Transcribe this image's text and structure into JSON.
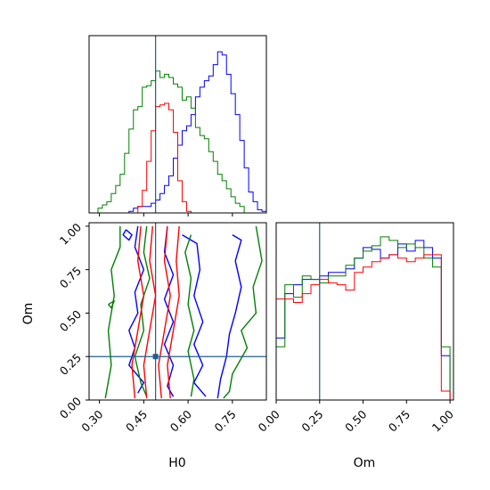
{
  "colors": {
    "truth": "#1f5f8b",
    "series": [
      "#0000ff",
      "#008000",
      "#ff0000"
    ]
  },
  "chart_data": [
    {
      "type": "histogram",
      "panel": "H0 marginal",
      "xlim": [
        0.265,
        0.865
      ],
      "x_ticks": [
        0.3,
        0.45,
        0.6,
        0.75
      ],
      "truth_x": 0.49,
      "bin_edges": [
        0.265,
        0.28,
        0.295,
        0.31,
        0.325,
        0.34,
        0.355,
        0.37,
        0.385,
        0.4,
        0.415,
        0.43,
        0.445,
        0.46,
        0.475,
        0.49,
        0.505,
        0.52,
        0.535,
        0.55,
        0.565,
        0.58,
        0.595,
        0.61,
        0.625,
        0.64,
        0.655,
        0.67,
        0.685,
        0.7,
        0.715,
        0.73,
        0.745,
        0.76,
        0.775,
        0.79,
        0.805,
        0.82,
        0.835,
        0.85,
        0.865
      ],
      "series": [
        {
          "color": "blue",
          "counts": [
            0,
            0,
            0,
            0,
            0,
            0,
            0,
            0,
            0,
            0.01,
            0.03,
            0.04,
            0.04,
            0.04,
            0.06,
            0.08,
            0.12,
            0.17,
            0.23,
            0.34,
            0.42,
            0.51,
            0.54,
            0.61,
            0.72,
            0.78,
            0.82,
            0.85,
            0.92,
            1.0,
            0.98,
            0.86,
            0.74,
            0.61,
            0.45,
            0.28,
            0.13,
            0.07,
            0.02,
            0.01
          ]
        },
        {
          "color": "green",
          "counts": [
            0,
            0,
            0.03,
            0.05,
            0.07,
            0.12,
            0.17,
            0.24,
            0.37,
            0.52,
            0.64,
            0.66,
            0.78,
            0.79,
            0.82,
            0.88,
            0.84,
            0.86,
            0.84,
            0.8,
            0.78,
            0.7,
            0.72,
            0.65,
            0.53,
            0.48,
            0.46,
            0.38,
            0.32,
            0.24,
            0.2,
            0.15,
            0.1,
            0.06,
            0.04,
            0,
            0,
            0,
            0,
            0
          ]
        },
        {
          "color": "red",
          "counts": [
            0,
            0,
            0,
            0,
            0,
            0,
            0,
            0,
            0,
            0,
            0,
            0.04,
            0.14,
            0.32,
            0.51,
            0.66,
            0.67,
            0.68,
            0.64,
            0.5,
            0.2,
            0.07,
            0.01,
            0,
            0,
            0,
            0,
            0,
            0,
            0,
            0,
            0,
            0,
            0,
            0,
            0,
            0,
            0,
            0,
            0
          ]
        }
      ]
    },
    {
      "type": "contour",
      "panel": "H0 vs Om joint",
      "xlabel": "H0",
      "ylabel": "Om",
      "xlim": [
        0.265,
        0.865
      ],
      "ylim": [
        0,
        1.02
      ],
      "x_ticks": [
        0.3,
        0.45,
        0.6,
        0.75
      ],
      "y_ticks": [
        0.0,
        0.25,
        0.5,
        0.75,
        1.0
      ],
      "truth": {
        "x": 0.49,
        "y": 0.25
      },
      "series": [
        {
          "color": "blue",
          "contours": [
            [
              [
                0.43,
                1.0
              ],
              [
                0.42,
                0.88
              ],
              [
                0.45,
                0.75
              ],
              [
                0.42,
                0.62
              ],
              [
                0.43,
                0.5
              ],
              [
                0.4,
                0.4
              ],
              [
                0.42,
                0.3
              ],
              [
                0.4,
                0.2
              ],
              [
                0.45,
                0.1
              ],
              [
                0.43,
                0.04
              ]
            ],
            [
              [
                0.53,
                1.0
              ],
              [
                0.52,
                0.85
              ],
              [
                0.55,
                0.72
              ],
              [
                0.52,
                0.58
              ],
              [
                0.55,
                0.45
              ],
              [
                0.52,
                0.32
              ],
              [
                0.55,
                0.2
              ],
              [
                0.53,
                0.08
              ],
              [
                0.55,
                0.02
              ]
            ],
            [
              [
                0.58,
                0.95
              ],
              [
                0.63,
                0.9
              ],
              [
                0.64,
                0.75
              ],
              [
                0.62,
                0.6
              ],
              [
                0.65,
                0.45
              ],
              [
                0.62,
                0.32
              ],
              [
                0.65,
                0.2
              ],
              [
                0.62,
                0.1
              ],
              [
                0.66,
                0.02
              ]
            ],
            [
              [
                0.75,
                0.95
              ],
              [
                0.78,
                0.92
              ],
              [
                0.76,
                0.8
              ],
              [
                0.78,
                0.65
              ],
              [
                0.76,
                0.5
              ],
              [
                0.74,
                0.38
              ],
              [
                0.73,
                0.25
              ],
              [
                0.71,
                0.12
              ],
              [
                0.7,
                0.01
              ]
            ],
            [
              [
                0.39,
                0.98
              ],
              [
                0.41,
                0.95
              ],
              [
                0.4,
                0.92
              ],
              [
                0.38,
                0.95
              ],
              [
                0.39,
                0.98
              ]
            ]
          ]
        },
        {
          "color": "green",
          "contours": [
            [
              [
                0.37,
                1.0
              ],
              [
                0.37,
                0.88
              ],
              [
                0.34,
                0.75
              ],
              [
                0.35,
                0.6
              ],
              [
                0.33,
                0.4
              ],
              [
                0.34,
                0.2
              ],
              [
                0.32,
                0.01
              ]
            ],
            [
              [
                0.83,
                1.0
              ],
              [
                0.85,
                0.8
              ],
              [
                0.82,
                0.65
              ],
              [
                0.83,
                0.5
              ],
              [
                0.78,
                0.4
              ],
              [
                0.8,
                0.3
              ],
              [
                0.75,
                0.15
              ],
              [
                0.74,
                0.05
              ],
              [
                0.72,
                0.01
              ]
            ],
            [
              [
                0.46,
                1.0
              ],
              [
                0.45,
                0.85
              ],
              [
                0.47,
                0.7
              ],
              [
                0.44,
                0.55
              ],
              [
                0.45,
                0.4
              ],
              [
                0.42,
                0.25
              ],
              [
                0.44,
                0.1
              ],
              [
                0.46,
                0.02
              ]
            ],
            [
              [
                0.61,
                0.95
              ],
              [
                0.59,
                0.85
              ],
              [
                0.61,
                0.7
              ],
              [
                0.6,
                0.55
              ],
              [
                0.62,
                0.4
              ],
              [
                0.6,
                0.28
              ],
              [
                0.62,
                0.12
              ],
              [
                0.61,
                0.02
              ]
            ],
            [
              [
                0.33,
                0.55
              ],
              [
                0.35,
                0.57
              ],
              [
                0.34,
                0.53
              ],
              [
                0.33,
                0.55
              ]
            ]
          ]
        },
        {
          "color": "red",
          "contours": [
            [
              [
                0.44,
                1.0
              ],
              [
                0.43,
                0.8
              ],
              [
                0.45,
                0.6
              ],
              [
                0.43,
                0.4
              ],
              [
                0.41,
                0.2
              ],
              [
                0.42,
                0.01
              ]
            ],
            [
              [
                0.48,
                1.0
              ],
              [
                0.47,
                0.8
              ],
              [
                0.49,
                0.6
              ],
              [
                0.47,
                0.4
              ],
              [
                0.45,
                0.2
              ],
              [
                0.46,
                0.01
              ]
            ],
            [
              [
                0.53,
                1.0
              ],
              [
                0.52,
                0.8
              ],
              [
                0.54,
                0.6
              ],
              [
                0.52,
                0.4
              ],
              [
                0.5,
                0.2
              ],
              [
                0.51,
                0.01
              ]
            ],
            [
              [
                0.57,
                1.0
              ],
              [
                0.56,
                0.8
              ],
              [
                0.57,
                0.6
              ],
              [
                0.55,
                0.4
              ],
              [
                0.53,
                0.2
              ],
              [
                0.54,
                0.01
              ]
            ]
          ]
        }
      ]
    },
    {
      "type": "histogram",
      "panel": "Om marginal",
      "xlabel": "Om",
      "xlim": [
        0,
        1.02
      ],
      "x_ticks": [
        0.0,
        0.25,
        0.5,
        0.75,
        1.0
      ],
      "truth_x": 0.25,
      "bin_edges": [
        0.0,
        0.05,
        0.1,
        0.15,
        0.2,
        0.25,
        0.3,
        0.35,
        0.4,
        0.45,
        0.5,
        0.55,
        0.6,
        0.65,
        0.7,
        0.75,
        0.8,
        0.85,
        0.9,
        0.95,
        1.0
      ],
      "series": [
        {
          "color": "blue",
          "counts": [
            0.35,
            0.6,
            0.65,
            0.68,
            0.68,
            0.7,
            0.72,
            0.72,
            0.74,
            0.8,
            0.86,
            0.85,
            0.8,
            0.82,
            0.88,
            0.84,
            0.9,
            0.86,
            0.8,
            0.25
          ]
        },
        {
          "color": "green",
          "counts": [
            0.3,
            0.65,
            0.58,
            0.7,
            0.68,
            0.66,
            0.7,
            0.7,
            0.76,
            0.8,
            0.84,
            0.87,
            0.92,
            0.9,
            0.86,
            0.88,
            0.86,
            0.8,
            0.75,
            0.3
          ]
        },
        {
          "color": "red",
          "counts": [
            0.57,
            0.57,
            0.55,
            0.6,
            0.65,
            0.68,
            0.66,
            0.65,
            0.62,
            0.72,
            0.75,
            0.78,
            0.8,
            0.82,
            0.8,
            0.78,
            0.8,
            0.82,
            0.82,
            0.05
          ]
        }
      ]
    }
  ]
}
